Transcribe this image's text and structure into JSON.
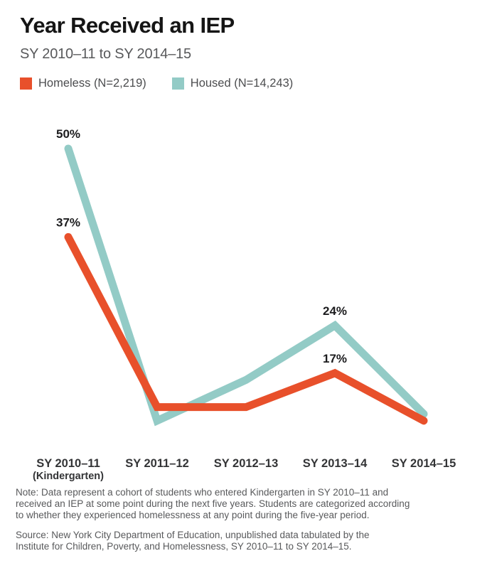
{
  "chart_data": {
    "type": "line",
    "title": "Year Received an IEP",
    "subtitle": "SY 2010–11 to SY 2014–15",
    "legend_position": "top-left",
    "grid": false,
    "y_axis_shown": false,
    "ylim": [
      0,
      55
    ],
    "categories": [
      "SY 2010–11",
      "SY 2011–12",
      "SY 2012–13",
      "SY 2013–14",
      "SY 2014–15"
    ],
    "category_sublabels": [
      "(Kindergarten)",
      "",
      "",
      "",
      ""
    ],
    "series": [
      {
        "id": "homeless",
        "name": "Homeless (N=2,219)",
        "color": "#E8502B",
        "values": [
          37,
          12,
          12,
          17,
          10
        ],
        "point_labels": [
          "37%",
          "",
          "",
          "17%",
          ""
        ]
      },
      {
        "id": "housed",
        "name": "Housed (N=14,243)",
        "color": "#93CBC6",
        "values": [
          50,
          10,
          16,
          24,
          11
        ],
        "point_labels": [
          "50%",
          "",
          "",
          "24%",
          ""
        ]
      }
    ],
    "note_lines": [
      "Note: Data represent a cohort of students who entered Kindergarten in SY 2010–11 and",
      "received an IEP at some point during the next five years. Students are categorized according",
      "to whether they experienced homelessness at any point during the five-year period."
    ],
    "source_lines": [
      "Source: New York City Department of Education, unpublished data tabulated by the",
      "Institute for Children, Poverty, and Homelessness, SY 2010–11 to SY 2014–15."
    ]
  }
}
